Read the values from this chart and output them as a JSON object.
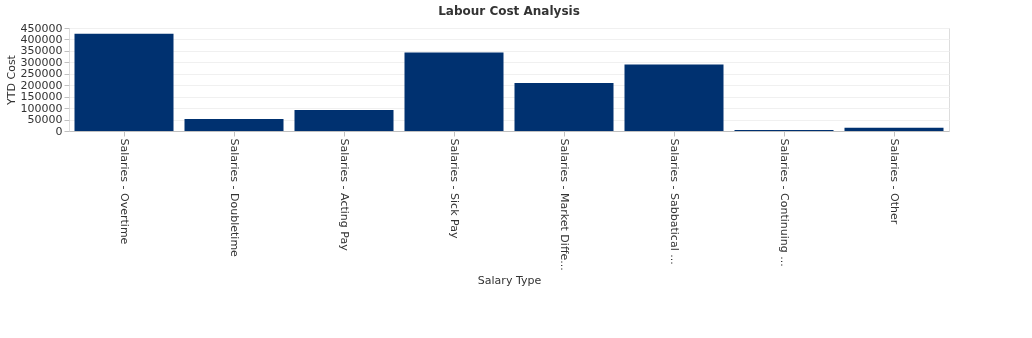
{
  "chart_data": {
    "type": "bar",
    "title": "Labour Cost Analysis",
    "xlabel": "Salary Type",
    "ylabel": "YTD Cost",
    "categories": [
      "Salaries - Overtime",
      "Salaries - Doubletime",
      "Salaries - Acting Pay",
      "Salaries - Sick Pay",
      "Salaries - Market Diffe...",
      "Salaries - Sabbatical ...",
      "Salaries - Continuing ...",
      "Salaries - Other"
    ],
    "values": [
      425000,
      52000,
      92000,
      343000,
      210000,
      290000,
      4000,
      14000
    ],
    "color": "#003170",
    "ylim": [
      0,
      450000
    ],
    "yticks": [
      0,
      50000,
      100000,
      150000,
      200000,
      250000,
      300000,
      350000,
      400000,
      450000
    ],
    "grid": "y"
  }
}
